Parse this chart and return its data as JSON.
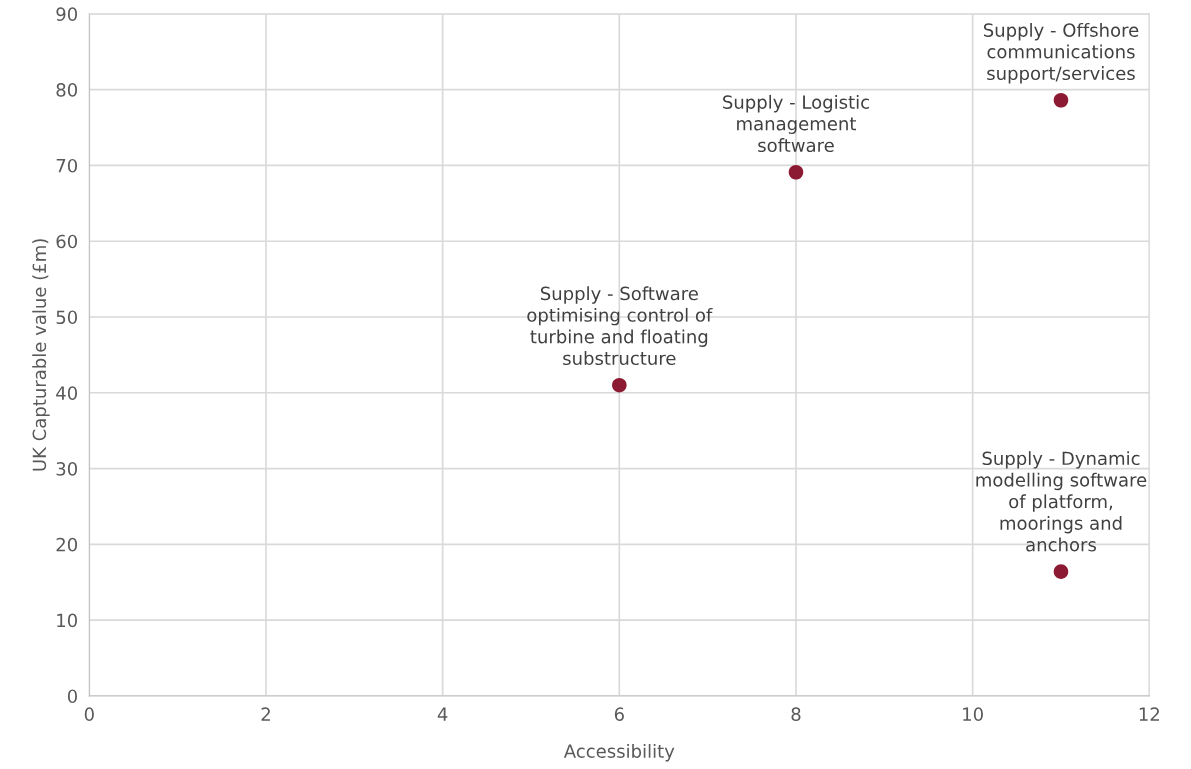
{
  "chart_data": {
    "type": "scatter",
    "xlabel": "Accessibility",
    "ylabel": "UK Capturable value (£m)",
    "x": [
      11,
      8,
      6,
      11
    ],
    "series": [
      {
        "color": "#8b1a32",
        "values": [
          78.6,
          69.1,
          41.0,
          16.4
        ]
      }
    ],
    "xlim": [
      0,
      12
    ],
    "xticks": [
      0,
      2,
      4,
      6,
      8,
      10,
      12
    ],
    "ylim": [
      0,
      90
    ],
    "yticks": [
      0,
      10,
      20,
      30,
      40,
      50,
      60,
      70,
      80,
      90
    ],
    "grid": true,
    "marker": "circle",
    "annotations": [
      {
        "text": "Supply - Offshore\ncommunications\nsupport/services",
        "x": 11,
        "y": 78.6
      },
      {
        "text": "Supply - Logistic\nmanagement\nsoftware",
        "x": 8,
        "y": 69.1
      },
      {
        "text": "Supply - Software\noptimising control of\nturbine and floating\nsubstructure",
        "x": 6,
        "y": 41.0
      },
      {
        "text": "Supply - Dynamic\nmodelling software\nof platform,\nmoorings and\nanchors",
        "x": 11,
        "y": 16.4
      }
    ]
  }
}
